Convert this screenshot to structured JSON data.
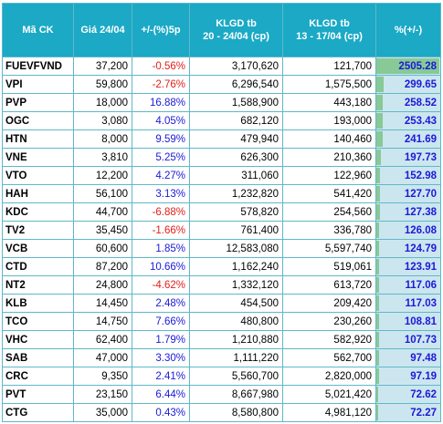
{
  "headers": {
    "symbol": "Mã CK",
    "price": "Giá 24/04",
    "change": "+/-(%)5p",
    "vol1_line1": "KLGD tb",
    "vol1_line2": "20 - 24/04 (cp)",
    "vol2_line1": "KLGD tb",
    "vol2_line2": "13 - 17/04 (cp)",
    "delta": "%(+/-)"
  },
  "colors": {
    "header_bg": "#1ba9c6",
    "negative": "#e0201c",
    "positive": "#1a1ad8",
    "bar_fill": "#88c996",
    "bar_bg": "#cce6ef"
  },
  "rows": [
    {
      "symbol": "FUEVFVND",
      "price": "37,200",
      "change": "-0.56%",
      "vol1": "3,170,620",
      "vol2": "121,700",
      "delta": "2505.28",
      "delta_value": 2505.28
    },
    {
      "symbol": "VPI",
      "price": "59,800",
      "change": "-2.76%",
      "vol1": "6,296,540",
      "vol2": "1,575,500",
      "delta": "299.65",
      "delta_value": 299.65
    },
    {
      "symbol": "PVP",
      "price": "18,000",
      "change": "16.88%",
      "vol1": "1,588,900",
      "vol2": "443,180",
      "delta": "258.52",
      "delta_value": 258.52
    },
    {
      "symbol": "OGC",
      "price": "3,080",
      "change": "4.05%",
      "vol1": "682,120",
      "vol2": "193,000",
      "delta": "253.43",
      "delta_value": 253.43
    },
    {
      "symbol": "HTN",
      "price": "8,000",
      "change": "9.59%",
      "vol1": "479,940",
      "vol2": "140,460",
      "delta": "241.69",
      "delta_value": 241.69
    },
    {
      "symbol": "VNE",
      "price": "3,810",
      "change": "5.25%",
      "vol1": "626,300",
      "vol2": "210,360",
      "delta": "197.73",
      "delta_value": 197.73
    },
    {
      "symbol": "VTO",
      "price": "12,200",
      "change": "4.27%",
      "vol1": "311,060",
      "vol2": "122,960",
      "delta": "152.98",
      "delta_value": 152.98
    },
    {
      "symbol": "HAH",
      "price": "56,100",
      "change": "3.13%",
      "vol1": "1,232,820",
      "vol2": "541,420",
      "delta": "127.70",
      "delta_value": 127.7
    },
    {
      "symbol": "KDC",
      "price": "44,700",
      "change": "-6.88%",
      "vol1": "578,820",
      "vol2": "254,560",
      "delta": "127.38",
      "delta_value": 127.38
    },
    {
      "symbol": "TV2",
      "price": "35,450",
      "change": "-1.66%",
      "vol1": "761,400",
      "vol2": "336,780",
      "delta": "126.08",
      "delta_value": 126.08
    },
    {
      "symbol": "VCB",
      "price": "60,600",
      "change": "1.85%",
      "vol1": "12,583,080",
      "vol2": "5,597,740",
      "delta": "124.79",
      "delta_value": 124.79
    },
    {
      "symbol": "CTD",
      "price": "87,200",
      "change": "10.66%",
      "vol1": "1,162,240",
      "vol2": "519,061",
      "delta": "123.91",
      "delta_value": 123.91
    },
    {
      "symbol": "NT2",
      "price": "24,800",
      "change": "-4.62%",
      "vol1": "1,332,120",
      "vol2": "613,720",
      "delta": "117.06",
      "delta_value": 117.06
    },
    {
      "symbol": "KLB",
      "price": "14,450",
      "change": "2.48%",
      "vol1": "454,500",
      "vol2": "209,420",
      "delta": "117.03",
      "delta_value": 117.03
    },
    {
      "symbol": "TCO",
      "price": "14,750",
      "change": "7.66%",
      "vol1": "480,800",
      "vol2": "230,260",
      "delta": "108.81",
      "delta_value": 108.81
    },
    {
      "symbol": "VHC",
      "price": "62,400",
      "change": "1.79%",
      "vol1": "1,210,880",
      "vol2": "582,920",
      "delta": "107.73",
      "delta_value": 107.73
    },
    {
      "symbol": "SAB",
      "price": "47,000",
      "change": "3.30%",
      "vol1": "1,111,220",
      "vol2": "562,700",
      "delta": "97.48",
      "delta_value": 97.48
    },
    {
      "symbol": "CRC",
      "price": "9,350",
      "change": "2.41%",
      "vol1": "5,560,700",
      "vol2": "2,820,000",
      "delta": "97.19",
      "delta_value": 97.19
    },
    {
      "symbol": "PVT",
      "price": "23,150",
      "change": "6.44%",
      "vol1": "8,667,980",
      "vol2": "5,021,420",
      "delta": "72.62",
      "delta_value": 72.62
    },
    {
      "symbol": "CTG",
      "price": "35,000",
      "change": "0.43%",
      "vol1": "8,580,800",
      "vol2": "4,981,120",
      "delta": "72.27",
      "delta_value": 72.27
    }
  ]
}
